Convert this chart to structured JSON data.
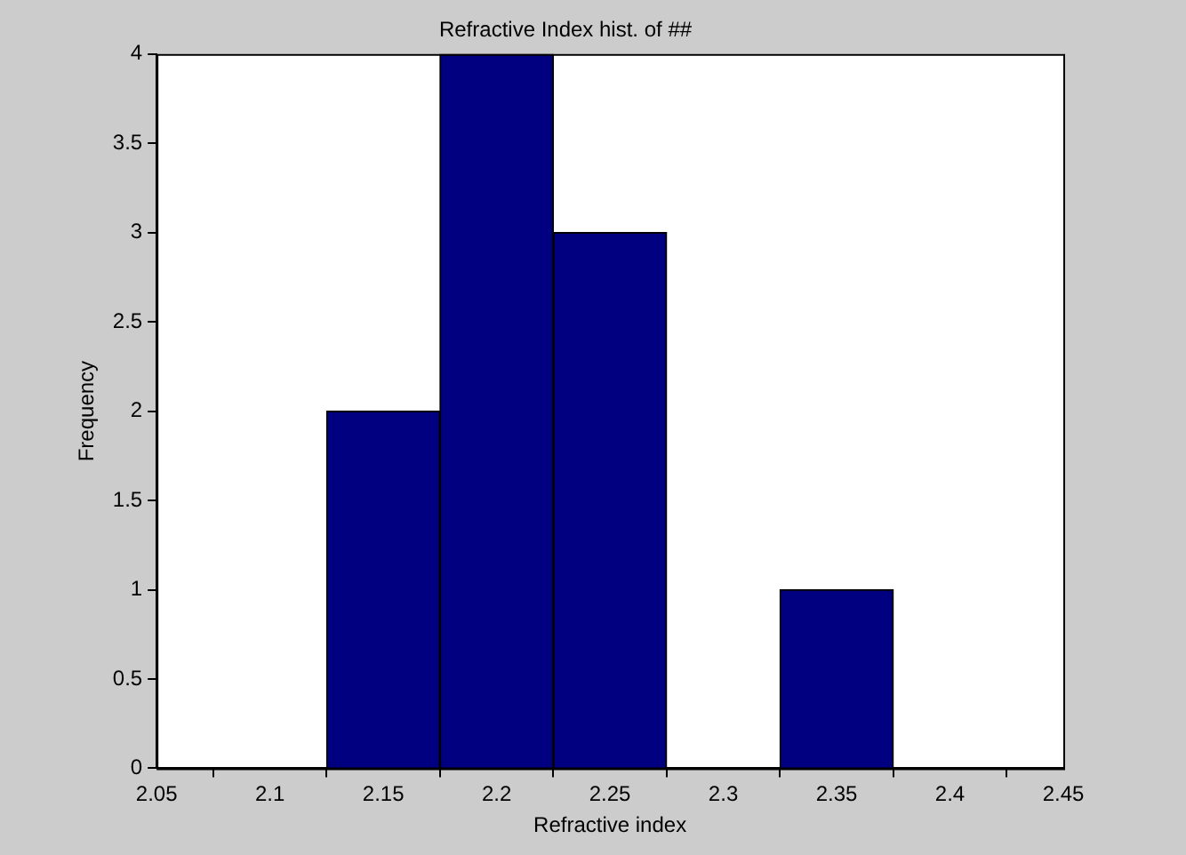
{
  "chart_data": {
    "type": "histogram",
    "title": "Refractive Index hist. of ##",
    "xlabel": "Refractive index",
    "ylabel": "Frequency",
    "bins": [
      2.125,
      2.175,
      2.225,
      2.275,
      2.325,
      2.375
    ],
    "values": [
      2,
      4,
      3,
      0,
      1
    ],
    "color": "#000080",
    "xlim": [
      2.05,
      2.45
    ],
    "xticks": [
      2.05,
      2.1,
      2.15,
      2.2,
      2.25,
      2.3,
      2.35,
      2.4,
      2.45
    ],
    "ylim": [
      0,
      4
    ],
    "yticks": [
      0,
      0.5,
      1,
      1.5,
      2,
      2.5,
      3,
      3.5,
      4
    ],
    "grid": false,
    "legend": false
  }
}
